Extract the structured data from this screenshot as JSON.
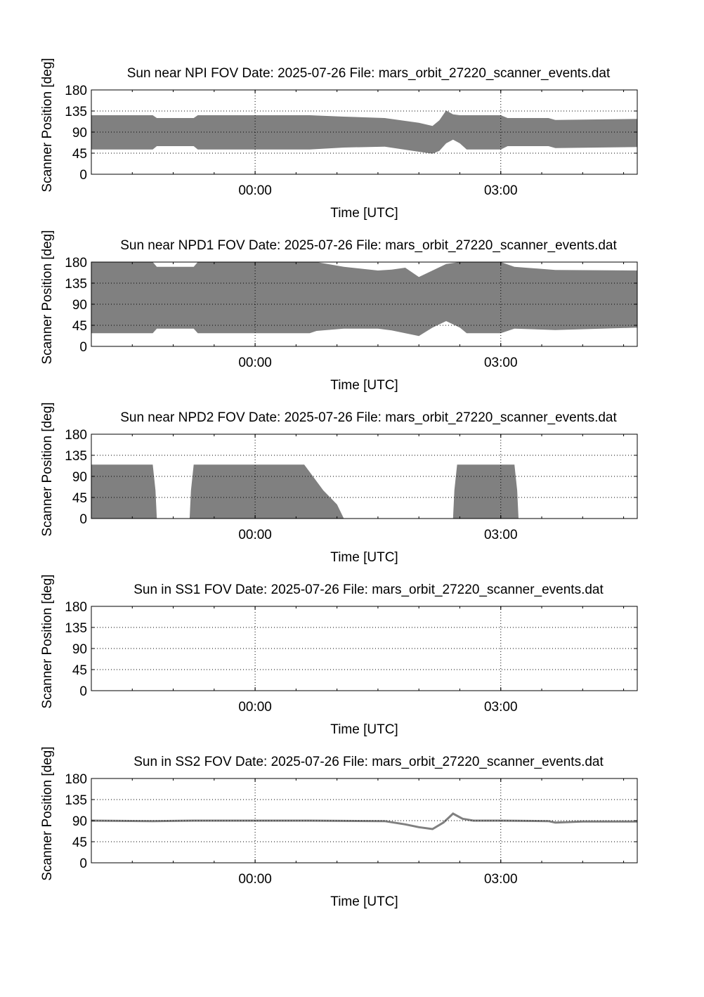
{
  "chart_data": [
    {
      "type": "area",
      "title": "Sun near NPI FOV   Date: 2025-07-26   File: mars_orbit_27220_scanner_events.dat",
      "xlabel": "Time [UTC]",
      "ylabel": "Scanner Position [deg]",
      "xlim": [
        "22:00",
        "04:40"
      ],
      "ylim": [
        0,
        180
      ],
      "yticks": [
        "0",
        "45",
        "90",
        "135",
        "180"
      ],
      "xticks": [
        "00:00",
        "03:00"
      ],
      "grid": true,
      "fill_color": "#808080",
      "series": [
        {
          "x": [
            "22:00",
            "22:45",
            "22:48",
            "23:15",
            "23:18",
            "00:00",
            "00:40",
            "01:05",
            "01:35",
            "02:00",
            "02:10",
            "02:15",
            "02:20",
            "02:25",
            "02:30",
            "02:35",
            "03:00",
            "03:05",
            "03:35",
            "03:40",
            "04:40"
          ],
          "low": [
            53,
            53,
            60,
            60,
            53,
            53,
            53,
            57,
            59,
            48,
            44,
            50,
            66,
            74,
            66,
            53,
            53,
            60,
            60,
            56,
            58
          ],
          "high": [
            126,
            126,
            120,
            120,
            126,
            126,
            126,
            123,
            120,
            110,
            103,
            115,
            136,
            128,
            126,
            126,
            126,
            120,
            120,
            116,
            118
          ]
        }
      ]
    },
    {
      "type": "area",
      "title": "Sun near NPD1 FOV   Date: 2025-07-26   File: mars_orbit_27220_scanner_events.dat",
      "xlabel": "Time [UTC]",
      "ylabel": "Scanner Position [deg]",
      "xlim": [
        "22:00",
        "04:40"
      ],
      "ylim": [
        0,
        180
      ],
      "yticks": [
        "0",
        "45",
        "90",
        "135",
        "180"
      ],
      "xticks": [
        "00:00",
        "03:00"
      ],
      "grid": true,
      "fill_color": "#808080",
      "series": [
        {
          "x": [
            "22:00",
            "22:45",
            "22:48",
            "23:15",
            "23:18",
            "00:00",
            "00:40",
            "00:45",
            "01:05",
            "01:30",
            "01:40",
            "01:50",
            "02:00",
            "02:10",
            "02:20",
            "02:30",
            "02:35",
            "03:00",
            "03:10",
            "03:40",
            "04:40"
          ],
          "low": [
            28,
            28,
            38,
            38,
            28,
            28,
            28,
            33,
            38,
            38,
            34,
            28,
            22,
            40,
            54,
            40,
            28,
            28,
            38,
            35,
            40
          ],
          "high": [
            180,
            180,
            170,
            170,
            180,
            180,
            180,
            180,
            170,
            162,
            164,
            168,
            148,
            162,
            176,
            180,
            180,
            180,
            170,
            163,
            162
          ]
        }
      ]
    },
    {
      "type": "area",
      "title": "Sun near NPD2 FOV   Date: 2025-07-26   File: mars_orbit_27220_scanner_events.dat",
      "xlabel": "Time [UTC]",
      "ylabel": "Scanner Position [deg]",
      "xlim": [
        "22:00",
        "04:40"
      ],
      "ylim": [
        0,
        180
      ],
      "yticks": [
        "0",
        "45",
        "90",
        "135",
        "180"
      ],
      "xticks": [
        "00:00",
        "03:00"
      ],
      "grid": true,
      "fill_color": "#808080",
      "series": [
        {
          "segments": [
            {
              "x": [
                "22:00",
                "22:45",
                "22:47",
                "22:48"
              ],
              "high": [
                115,
                115,
                60,
                0
              ]
            },
            {
              "x": [
                "23:12",
                "23:13",
                "23:15",
                "00:00",
                "00:36",
                "00:50",
                "01:00",
                "01:05"
              ],
              "high": [
                0,
                60,
                115,
                115,
                115,
                60,
                30,
                0
              ]
            },
            {
              "x": [
                "02:25",
                "02:26",
                "02:28",
                "03:10",
                "03:12",
                "03:13"
              ],
              "high": [
                0,
                60,
                115,
                115,
                60,
                0
              ]
            }
          ]
        }
      ]
    },
    {
      "type": "line",
      "title": "Sun in SS1 FOV   Date: 2025-07-26   File: mars_orbit_27220_scanner_events.dat",
      "xlabel": "Time [UTC]",
      "ylabel": "Scanner Position [deg]",
      "xlim": [
        "22:00",
        "04:40"
      ],
      "ylim": [
        0,
        180
      ],
      "yticks": [
        "0",
        "45",
        "90",
        "135",
        "180"
      ],
      "xticks": [
        "00:00",
        "03:00"
      ],
      "grid": true,
      "series": []
    },
    {
      "type": "line",
      "title": "Sun in SS2 FOV   Date: 2025-07-26   File: mars_orbit_27220_scanner_events.dat",
      "xlabel": "Time [UTC]",
      "ylabel": "Scanner Position [deg]",
      "xlim": [
        "22:00",
        "04:40"
      ],
      "ylim": [
        0,
        180
      ],
      "yticks": [
        "0",
        "45",
        "90",
        "135",
        "180"
      ],
      "xticks": [
        "00:00",
        "03:00"
      ],
      "grid": true,
      "line_color": "#808080",
      "series": [
        {
          "x": [
            "22:00",
            "22:45",
            "23:15",
            "00:00",
            "00:40",
            "01:35",
            "01:50",
            "02:00",
            "02:10",
            "02:18",
            "02:25",
            "02:32",
            "02:40",
            "03:00",
            "03:35",
            "03:40",
            "04:00",
            "04:40"
          ],
          "y": [
            90,
            89,
            90,
            90,
            90,
            89,
            82,
            76,
            72,
            86,
            105,
            94,
            90,
            90,
            89,
            86,
            88,
            88
          ]
        }
      ]
    }
  ]
}
